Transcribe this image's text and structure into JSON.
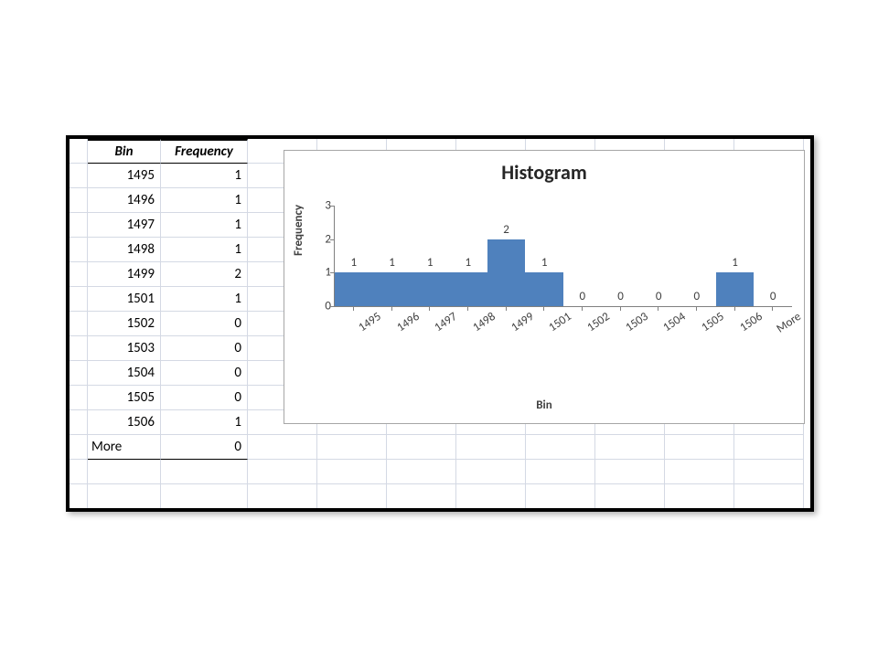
{
  "table": {
    "columns": [
      "Bin",
      "Frequency"
    ],
    "rows": [
      [
        "1495",
        "1"
      ],
      [
        "1496",
        "1"
      ],
      [
        "1497",
        "1"
      ],
      [
        "1498",
        "1"
      ],
      [
        "1499",
        "2"
      ],
      [
        "1501",
        "1"
      ],
      [
        "1502",
        "0"
      ],
      [
        "1503",
        "0"
      ],
      [
        "1504",
        "0"
      ],
      [
        "1505",
        "0"
      ],
      [
        "1506",
        "1"
      ],
      [
        "More",
        "0"
      ]
    ]
  },
  "chart": {
    "type": "bar",
    "title": "Histogram",
    "xlabel": "Bin",
    "ylabel": "Frequency",
    "categories": [
      "1495",
      "1496",
      "1497",
      "1498",
      "1499",
      "1501",
      "1502",
      "1503",
      "1504",
      "1505",
      "1506",
      "More"
    ],
    "values": [
      1,
      1,
      1,
      1,
      2,
      1,
      0,
      0,
      0,
      0,
      1,
      0
    ],
    "ylim": [
      0,
      3
    ],
    "ytick_step": 1,
    "bar_color": "#4f81bd",
    "axis_color": "#808080",
    "text_color": "#404040",
    "background_color": "#ffffff",
    "title_fontsize": 22,
    "label_fontsize": 13,
    "tick_fontsize": 13,
    "bar_width_ratio": 1.0,
    "x_tick_rotation": -34
  }
}
